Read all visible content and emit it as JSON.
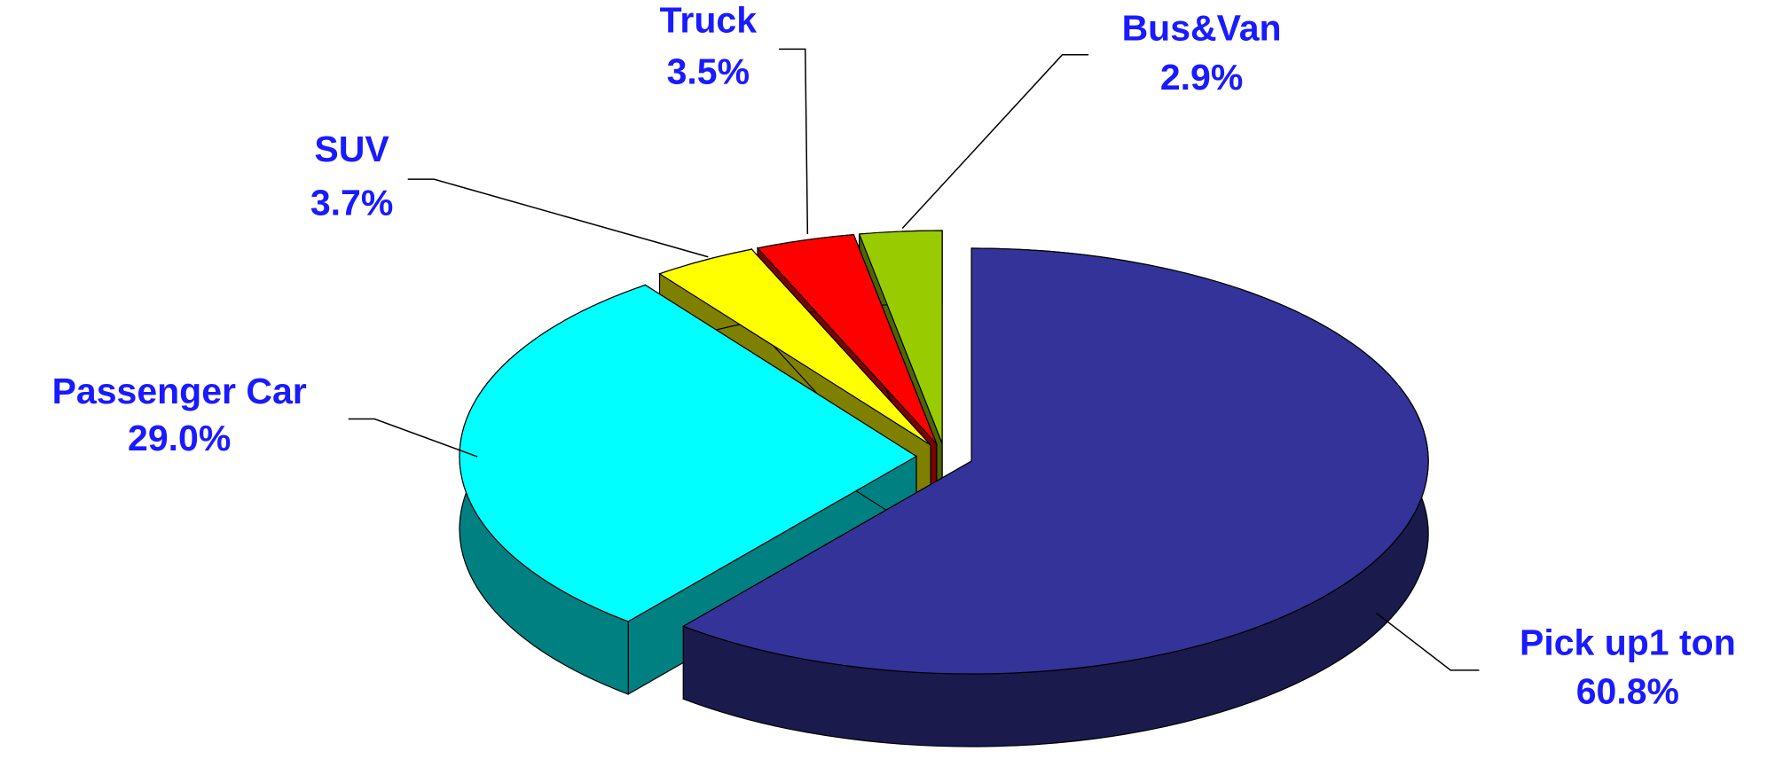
{
  "chart_data": {
    "type": "pie",
    "categories": [
      "Pick up1 ton",
      "Passenger Car",
      "SUV",
      "Truck",
      "Bus&Van"
    ],
    "values": [
      60.8,
      29.0,
      3.7,
      3.5,
      2.9
    ],
    "value_labels": [
      "60.8%",
      "29.0%",
      "3.7%",
      "3.5%",
      "2.9%"
    ],
    "colors": [
      "#333399",
      "#00ffff",
      "#ffff00",
      "#ff0000",
      "#99cc00"
    ]
  }
}
